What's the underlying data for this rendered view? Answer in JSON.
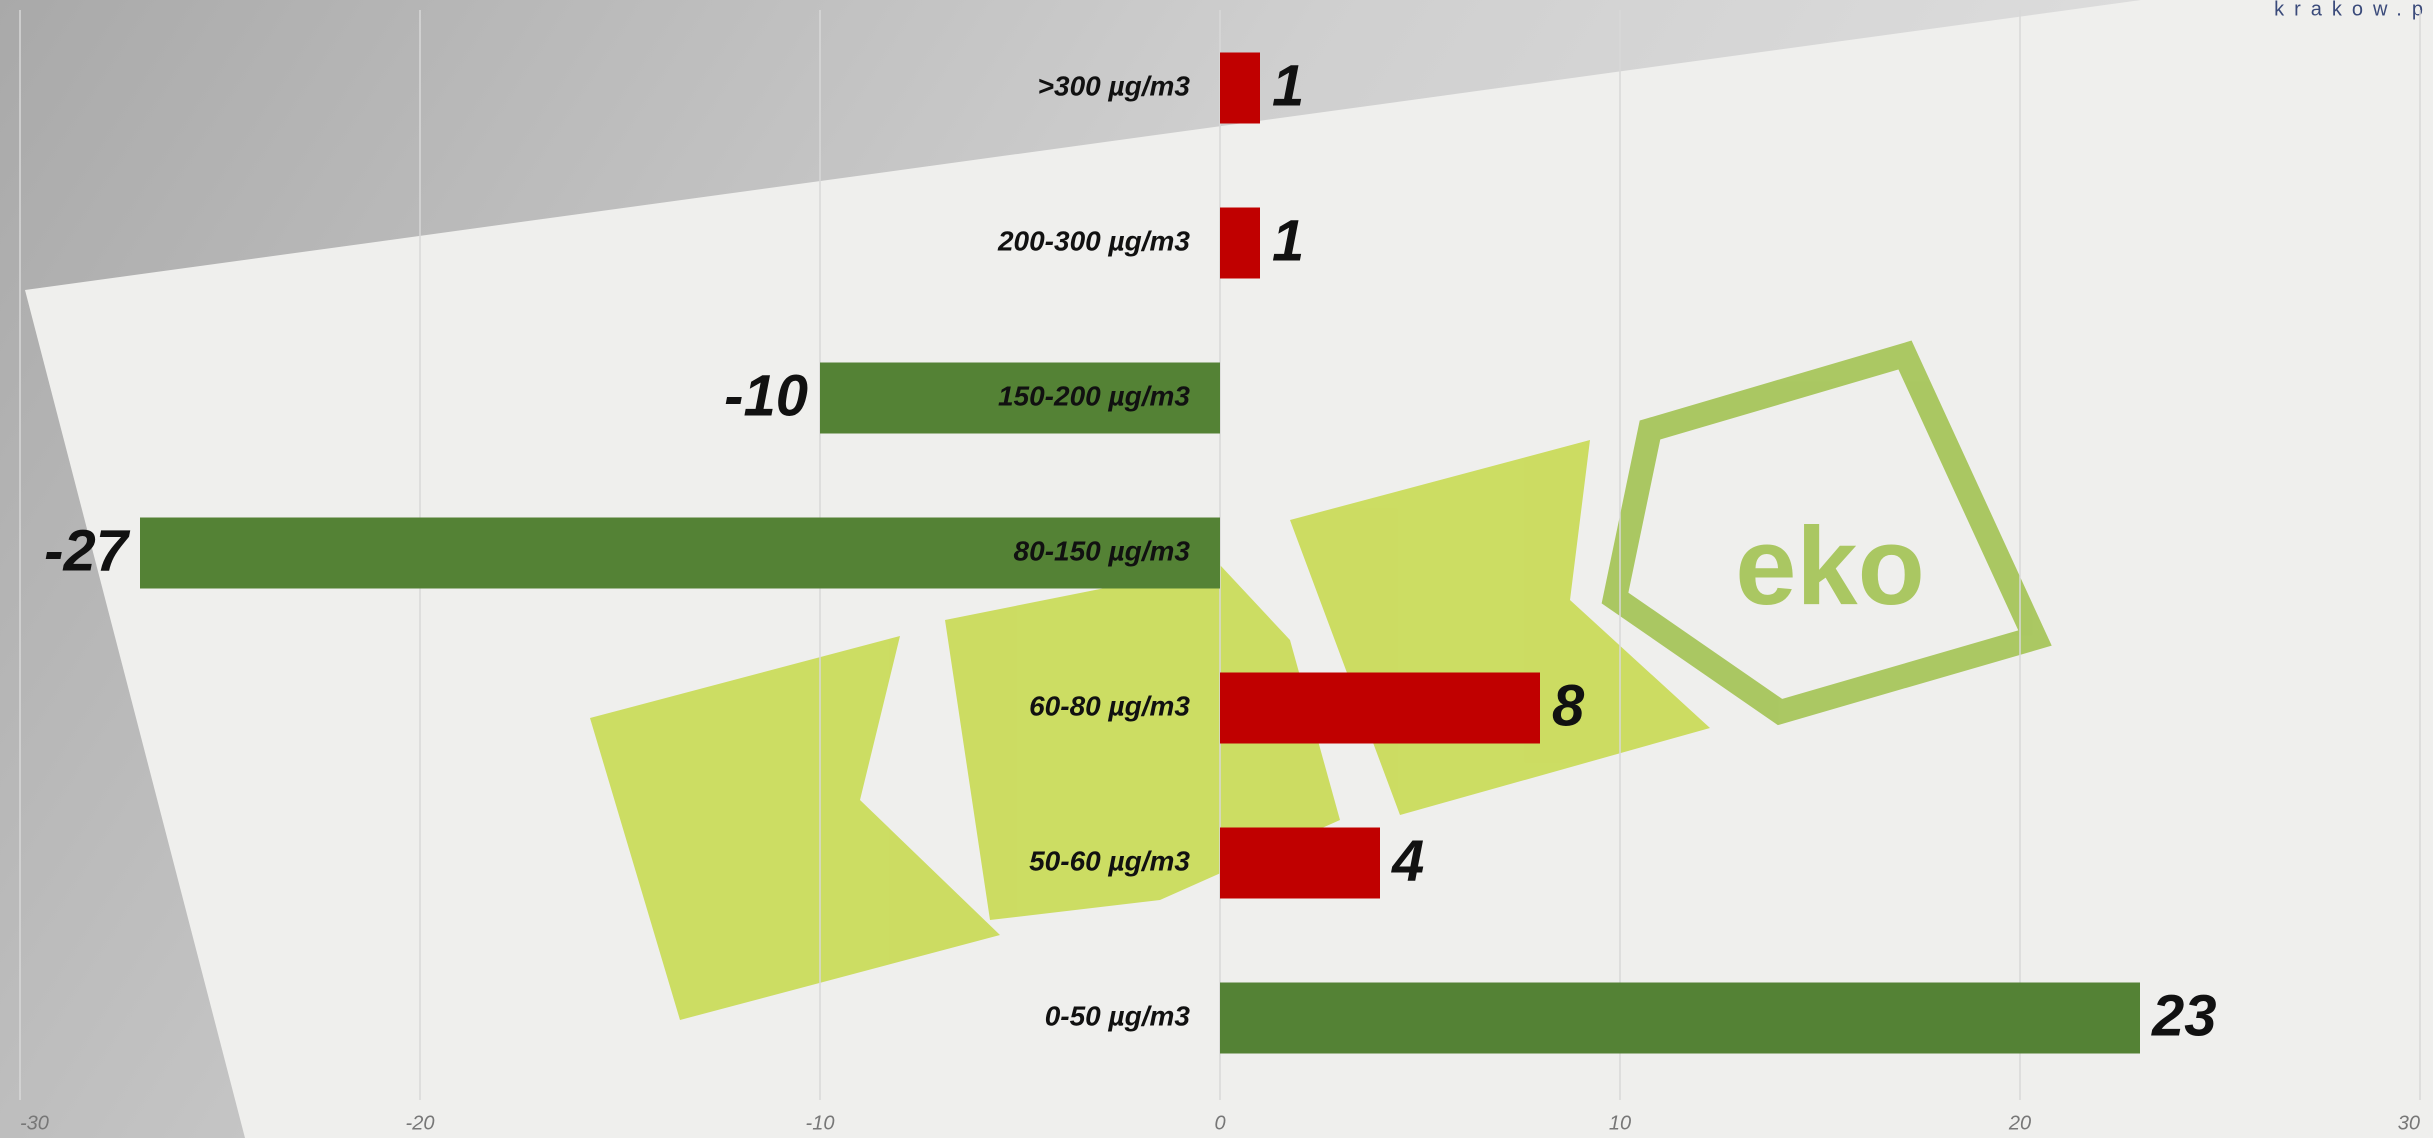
{
  "watermark": "krakow.p",
  "logo_text": "eko",
  "chart_data": {
    "type": "hbar",
    "categories": [
      ">300 µg/m3",
      "200-300 µg/m3",
      "150-200 µg/m3",
      "80-150 µg/m3",
      "60-80 µg/m3",
      "50-60 µg/m3",
      "0-50 µg/m3"
    ],
    "values": [
      1,
      1,
      -10,
      -27,
      8,
      4,
      23
    ],
    "colors": [
      "#c00000",
      "#c00000",
      "#548235",
      "#548235",
      "#c00000",
      "#c00000",
      "#548235"
    ],
    "xlim": [
      -30,
      30
    ],
    "xticks": [
      -30,
      -20,
      -10,
      0,
      10,
      20,
      30
    ],
    "grid": true
  }
}
